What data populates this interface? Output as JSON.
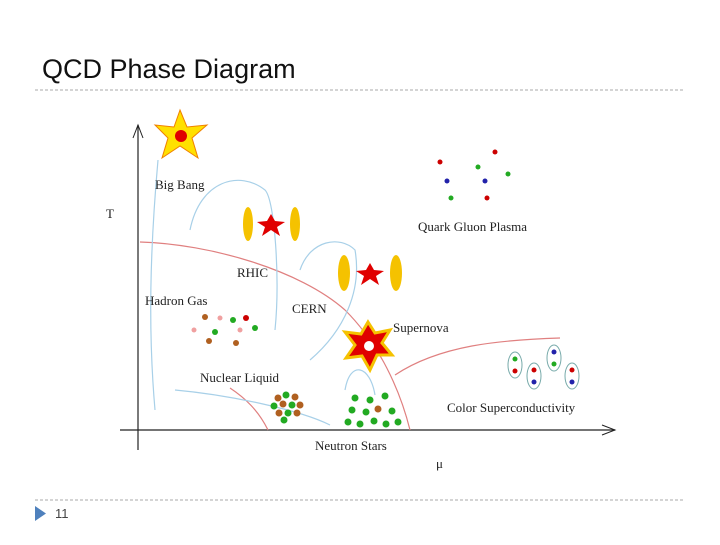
{
  "slide": {
    "title": "QCD Phase Diagram",
    "page_number": "11"
  },
  "diagram": {
    "axes": {
      "y": "T",
      "x": "μ"
    },
    "labels": {
      "big_bang": "Big Bang",
      "rhic": "RHIC",
      "hadron_gas": "Hadron Gas",
      "cern": "CERN",
      "supernova": "Supernova",
      "nuclear_liquid": "Nuclear Liquid",
      "neutron_stars": "Neutron Stars",
      "quark_gluon_plasma": "Quark Gluon Plasma",
      "color_superconductivity": "Color Superconductivity"
    }
  }
}
